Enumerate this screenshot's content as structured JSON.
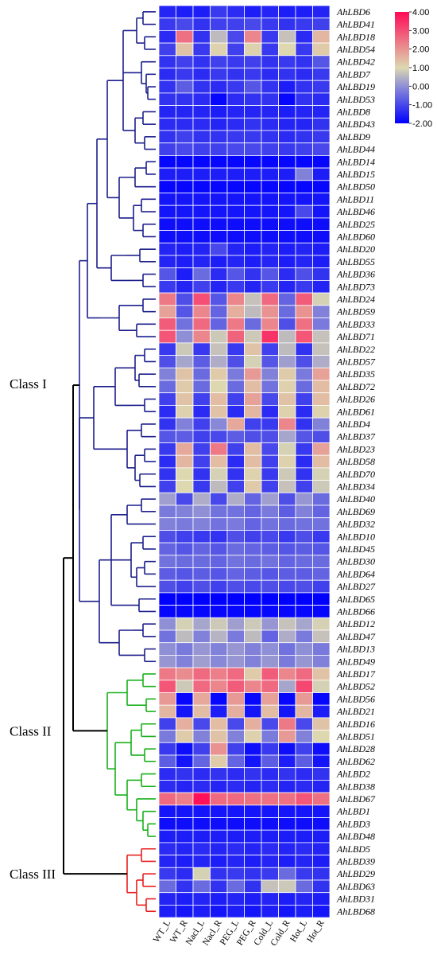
{
  "chart_data": {
    "type": "heatmap",
    "columns": [
      "WT_L",
      "WT_R",
      "Nacl_L",
      "Nacl_R",
      "PEG_L",
      "PEG_R",
      "Cold_L",
      "Cold_R",
      "Hot_L",
      "Hot_R"
    ],
    "rows": [
      "AhLBD6",
      "AhLBD41",
      "AhLBD18",
      "AhLBD54",
      "AhLBD42",
      "AhLBD7",
      "AhLBD19",
      "AhLBD53",
      "AhLBD8",
      "AhLBD43",
      "AhLBD9",
      "AhLBD44",
      "AhLBD14",
      "AhLBD15",
      "AhLBD50",
      "AhLBD11",
      "AhLBD46",
      "AhLBD25",
      "AhLBD60",
      "AhLBD20",
      "AhLBD55",
      "AhLBD36",
      "AhLBD73",
      "AhLBD24",
      "AhLBD59",
      "AhLBD33",
      "AhLBD71",
      "AhLBD22",
      "AhLBD57",
      "AhLBD35",
      "AhLBD72",
      "AhLBD26",
      "AhLBD61",
      "AhLBD4",
      "AhLBD37",
      "AhLBD23",
      "AhLBD58",
      "AhLBD70",
      "AhLBD34",
      "AhLBD40",
      "AhLBD69",
      "AhLBD32",
      "AhLBD10",
      "AhLBD45",
      "AhLBD30",
      "AhLBD64",
      "AhLBD27",
      "AhLBD65",
      "AhLBD66",
      "AhLBD12",
      "AhLBD47",
      "AhLBD13",
      "AhLBD49",
      "AhLBD17",
      "AhLBD52",
      "AhLBD56",
      "AhLBD21",
      "AhLBD16",
      "AhLBD51",
      "AhLBD28",
      "AhLBD62",
      "AhLBD2",
      "AhLBD38",
      "AhLBD67",
      "AhLBD1",
      "AhLBD3",
      "AhLBD48",
      "AhLBD5",
      "AhLBD39",
      "AhLBD29",
      "AhLBD63",
      "AhLBD31",
      "AhLBD68"
    ],
    "values": [
      [
        -1.5,
        -1.6,
        -1.6,
        -1.2,
        -1.4,
        -1.6,
        -1.5,
        -1.6,
        -1.6,
        -1.5
      ],
      [
        -1.2,
        -1.0,
        -1.3,
        -1.1,
        -1.1,
        -1.0,
        -1.2,
        -1.3,
        -1.2,
        -1.1
      ],
      [
        -1.4,
        2.5,
        -1.3,
        0.6,
        -1.0,
        2.2,
        -1.2,
        0.7,
        -1.4,
        1.5
      ],
      [
        -1.1,
        1.3,
        -1.2,
        1.1,
        -1.1,
        1.1,
        -1.2,
        1.0,
        -1.2,
        1.2
      ],
      [
        -1.3,
        -1.1,
        -1.3,
        -1.1,
        -1.2,
        -1.1,
        -1.3,
        -1.2,
        -1.3,
        -0.8
      ],
      [
        -1.4,
        -1.2,
        -1.4,
        -1.2,
        -1.3,
        -1.2,
        -1.4,
        -1.3,
        -1.4,
        -1.2
      ],
      [
        -1.3,
        -0.7,
        -1.3,
        -1.4,
        -1.2,
        -0.8,
        -1.3,
        -1.6,
        -1.3,
        -1.2
      ],
      [
        -1.3,
        -1.3,
        -1.4,
        -1.9,
        -1.4,
        -1.3,
        -1.3,
        -1.9,
        -1.3,
        -1.4
      ],
      [
        -1.5,
        -1.5,
        -1.5,
        -1.6,
        -1.5,
        -1.5,
        -1.5,
        -1.6,
        -1.5,
        -1.5
      ],
      [
        -1.4,
        -1.4,
        -1.4,
        -1.5,
        -1.4,
        -1.3,
        -1.4,
        -1.5,
        -1.5,
        -1.3
      ],
      [
        -1.3,
        -1.1,
        -1.3,
        -1.3,
        -1.2,
        -1.2,
        -1.3,
        -1.4,
        -1.3,
        -1.2
      ],
      [
        -1.1,
        -1.0,
        -1.1,
        -1.1,
        -1.0,
        -1.0,
        -1.1,
        -1.2,
        -1.1,
        -1.0
      ],
      [
        -1.9,
        -1.9,
        -1.9,
        -1.9,
        -1.9,
        -1.9,
        -1.9,
        -1.9,
        -1.9,
        -1.9
      ],
      [
        -1.6,
        -1.6,
        -1.6,
        -1.6,
        -1.6,
        -1.6,
        -1.6,
        -1.6,
        -0.2,
        -1.6
      ],
      [
        -1.9,
        -1.9,
        -1.9,
        -1.9,
        -1.9,
        -1.9,
        -1.9,
        -1.9,
        -1.9,
        -1.9
      ],
      [
        -1.7,
        -1.7,
        -1.7,
        -1.7,
        -1.7,
        -1.7,
        -1.7,
        -1.7,
        -1.7,
        -1.7
      ],
      [
        -1.7,
        -1.7,
        -1.7,
        -1.7,
        -1.7,
        -1.7,
        -1.7,
        -1.7,
        -1.0,
        -1.7
      ],
      [
        -1.8,
        -1.8,
        -1.8,
        -1.8,
        -1.8,
        -1.8,
        -1.8,
        -1.8,
        -1.8,
        -1.8
      ],
      [
        -1.8,
        -1.8,
        -1.8,
        -1.8,
        -1.8,
        -1.8,
        -1.8,
        -1.8,
        -1.8,
        -1.8
      ],
      [
        -1.5,
        -1.6,
        -1.5,
        -1.0,
        -1.5,
        -1.6,
        -1.5,
        -1.6,
        -1.5,
        -1.6
      ],
      [
        -1.5,
        -1.6,
        -1.5,
        -1.6,
        -1.5,
        -1.6,
        -1.5,
        -1.6,
        -1.5,
        -1.6
      ],
      [
        -0.8,
        -1.6,
        -0.5,
        -1.4,
        -0.8,
        -1.3,
        -0.8,
        -1.4,
        -0.9,
        -1.3
      ],
      [
        -1.2,
        -1.5,
        -1.1,
        -1.5,
        -1.2,
        -1.5,
        -1.2,
        -1.5,
        -1.2,
        -1.5
      ],
      [
        2.4,
        -0.9,
        3.0,
        -0.8,
        2.2,
        0.7,
        2.6,
        -0.6,
        2.8,
        0.9
      ],
      [
        1.8,
        -0.8,
        2.2,
        -0.6,
        1.6,
        0.6,
        2.0,
        -0.5,
        2.0,
        -0.2
      ],
      [
        2.8,
        -0.4,
        2.6,
        -0.6,
        2.4,
        -0.5,
        2.2,
        -0.9,
        2.5,
        -0.3
      ],
      [
        2.9,
        0.0,
        2.2,
        0.8,
        2.7,
        0.8,
        3.4,
        0.6,
        2.9,
        0.7
      ],
      [
        -1.2,
        0.8,
        -1.2,
        0.7,
        -1.2,
        1.3,
        -1.1,
        0.6,
        -1.3,
        0.7
      ],
      [
        -0.9,
        0.3,
        -0.7,
        0.4,
        -0.9,
        0.9,
        -0.8,
        0.2,
        -0.9,
        0.4
      ],
      [
        -0.2,
        1.3,
        -0.5,
        1.2,
        -0.3,
        1.9,
        -0.2,
        1.2,
        -0.3,
        1.8
      ],
      [
        -0.5,
        1.2,
        -0.5,
        1.0,
        -0.5,
        1.4,
        -0.4,
        1.1,
        -0.5,
        1.4
      ],
      [
        -1.1,
        1.3,
        -1.1,
        1.4,
        -1.1,
        1.8,
        -1.0,
        1.3,
        -1.1,
        1.4
      ],
      [
        -1.4,
        1.1,
        -1.4,
        1.3,
        -1.4,
        1.5,
        -1.4,
        1.1,
        -1.4,
        1.1
      ],
      [
        -1.3,
        -0.2,
        -1.1,
        -0.1,
        1.7,
        -1.1,
        -1.2,
        2.2,
        -1.3,
        -0.2
      ],
      [
        -0.8,
        -0.7,
        -1.1,
        -1.0,
        -0.7,
        -0.9,
        -0.9,
        0.3,
        -0.8,
        -0.9
      ],
      [
        -1.2,
        1.7,
        -1.1,
        2.4,
        -1.1,
        1.4,
        -1.0,
        0.9,
        -1.2,
        1.8
      ],
      [
        -1.4,
        1.5,
        -1.1,
        1.4,
        -1.4,
        1.4,
        -1.1,
        1.1,
        -1.4,
        1.4
      ],
      [
        -1.3,
        1.0,
        -1.3,
        0.9,
        -1.3,
        1.1,
        -1.2,
        0.8,
        -1.3,
        0.9
      ],
      [
        -1.1,
        1.0,
        -1.2,
        0.6,
        -1.1,
        1.2,
        -1.1,
        0.7,
        -1.1,
        0.8
      ],
      [
        0.2,
        -1.0,
        0.4,
        -1.0,
        0.4,
        -0.6,
        0.2,
        -0.9,
        0.1,
        -0.5
      ],
      [
        -0.3,
        -0.2,
        0.0,
        -0.4,
        -0.4,
        -0.6,
        -0.3,
        -0.7,
        -0.2,
        -0.6
      ],
      [
        -0.2,
        -0.3,
        -0.2,
        -0.4,
        -0.3,
        -0.6,
        -0.4,
        -0.5,
        -0.4,
        -0.4
      ],
      [
        -0.9,
        -1.1,
        -1.2,
        -1.3,
        -0.9,
        -1.1,
        -1.0,
        -1.2,
        -0.9,
        -1.2
      ],
      [
        -0.6,
        -0.8,
        -0.6,
        -0.8,
        -0.5,
        -0.6,
        -0.7,
        -0.8,
        -0.7,
        -0.8
      ],
      [
        -0.4,
        -0.5,
        -0.5,
        -0.6,
        -0.4,
        -0.5,
        -0.4,
        -0.6,
        -0.5,
        -0.5
      ],
      [
        -0.7,
        -0.8,
        -0.7,
        -0.8,
        -0.6,
        -0.7,
        -0.8,
        -0.7,
        -0.7,
        -0.6
      ],
      [
        -0.9,
        -1.1,
        -0.9,
        -1.1,
        -0.9,
        -1.0,
        -0.9,
        -1.0,
        -0.9,
        -1.1
      ],
      [
        -2.0,
        -2.0,
        -2.0,
        -2.0,
        -2.0,
        -2.0,
        -2.0,
        -2.0,
        -2.0,
        -2.0
      ],
      [
        -1.9,
        -1.9,
        -1.9,
        -1.9,
        -1.9,
        -1.9,
        -1.9,
        -1.9,
        -1.9,
        -1.9
      ],
      [
        0.0,
        0.9,
        0.3,
        0.8,
        0.2,
        0.8,
        0.1,
        0.7,
        0.3,
        0.9
      ],
      [
        -0.4,
        0.6,
        -0.2,
        0.5,
        -0.3,
        0.6,
        -0.6,
        0.4,
        -0.3,
        0.7
      ],
      [
        0.0,
        -0.3,
        0.1,
        -0.2,
        0.1,
        -0.2,
        0.0,
        -0.4,
        0.0,
        -0.3
      ],
      [
        0.1,
        -0.2,
        0.2,
        -0.1,
        0.1,
        -0.2,
        0.1,
        -0.3,
        0.1,
        -0.2
      ],
      [
        2.4,
        2.1,
        2.6,
        2.3,
        2.6,
        1.2,
        2.8,
        2.2,
        2.6,
        1.3
      ],
      [
        2.9,
        0.8,
        2.6,
        2.2,
        2.8,
        2.2,
        2.6,
        0.3,
        3.1,
        0.9
      ],
      [
        1.9,
        -1.9,
        1.7,
        -1.9,
        1.9,
        -1.9,
        1.8,
        -1.9,
        1.9,
        -1.9
      ],
      [
        1.5,
        -1.7,
        1.4,
        -1.6,
        1.6,
        -1.7,
        1.4,
        -1.7,
        1.5,
        -1.6
      ],
      [
        -1.1,
        1.6,
        -1.0,
        1.4,
        -1.0,
        1.6,
        -1.0,
        2.4,
        -1.0,
        1.3
      ],
      [
        -0.3,
        1.2,
        -0.2,
        1.3,
        -0.2,
        1.1,
        -0.3,
        1.9,
        -0.2,
        1.0
      ],
      [
        -1.2,
        -1.8,
        -1.1,
        2.0,
        -1.1,
        -1.8,
        -1.2,
        -1.8,
        -1.1,
        -1.8
      ],
      [
        -0.7,
        -1.7,
        -0.6,
        1.2,
        -0.6,
        -1.7,
        -0.7,
        -1.6,
        -0.7,
        -1.7
      ],
      [
        -1.4,
        -1.3,
        -1.4,
        -1.3,
        -1.4,
        -1.3,
        -1.4,
        -1.3,
        -1.4,
        -1.3
      ],
      [
        -1.4,
        -1.5,
        -1.4,
        -1.5,
        -1.4,
        -1.5,
        -1.4,
        -1.5,
        -1.4,
        -1.5
      ],
      [
        2.6,
        2.3,
        3.9,
        2.6,
        2.6,
        2.5,
        2.5,
        2.5,
        2.9,
        2.5
      ],
      [
        -1.7,
        -1.7,
        -1.7,
        -1.7,
        -1.7,
        -1.7,
        -1.7,
        -1.7,
        -1.7,
        -1.7
      ],
      [
        -1.8,
        -1.8,
        -1.8,
        -1.8,
        -1.8,
        -1.8,
        -1.8,
        -1.8,
        -1.8,
        -1.8
      ],
      [
        -1.6,
        -1.6,
        -1.6,
        -1.6,
        -1.6,
        -1.6,
        -1.6,
        -1.6,
        -1.6,
        -1.6
      ],
      [
        -1.4,
        -1.5,
        -1.4,
        -1.5,
        -1.4,
        -1.5,
        -1.4,
        -1.5,
        -1.4,
        -1.5
      ],
      [
        -1.5,
        -1.6,
        -1.5,
        -1.6,
        -1.5,
        -1.6,
        -1.5,
        -1.6,
        -1.5,
        -1.6
      ],
      [
        -1.2,
        -1.4,
        0.9,
        -1.3,
        -1.2,
        -1.3,
        -1.2,
        -0.5,
        -1.2,
        -1.3
      ],
      [
        -0.5,
        -1.3,
        -0.5,
        -1.3,
        -0.5,
        -1.3,
        0.7,
        0.8,
        -0.5,
        -1.3
      ],
      [
        -1.5,
        -1.6,
        -1.5,
        -1.6,
        -1.5,
        -1.6,
        -1.5,
        -1.6,
        -1.5,
        -1.6
      ],
      [
        -1.6,
        -1.7,
        -1.6,
        -1.7,
        -1.6,
        -1.7,
        -1.6,
        -1.7,
        -1.6,
        -1.7
      ]
    ],
    "color_scale": {
      "min": -2.0,
      "max": 4.0,
      "stops": [
        {
          "value": -2.0,
          "color": "#0000ff"
        },
        {
          "value": 0.0,
          "color": "#8f8fd6"
        },
        {
          "value": 1.0,
          "color": "#ddd8b0"
        },
        {
          "value": 4.0,
          "color": "#ff0a56"
        }
      ],
      "tick_labels": [
        "4.00",
        "3.00",
        "2.00",
        "1.00",
        "0.00",
        "-1.00",
        "-2.00"
      ],
      "legend_position": "top-right"
    },
    "classes": [
      {
        "label": "Class I",
        "first_row": 0,
        "last_row": 52,
        "color": "#1c1e8c"
      },
      {
        "label": "Class II",
        "first_row": 53,
        "last_row": 66,
        "color": "#18b01a"
      },
      {
        "label": "Class III",
        "first_row": 67,
        "last_row": 72,
        "color": "#e81e1e"
      }
    ],
    "dendrogram_color_root": "#000000"
  }
}
